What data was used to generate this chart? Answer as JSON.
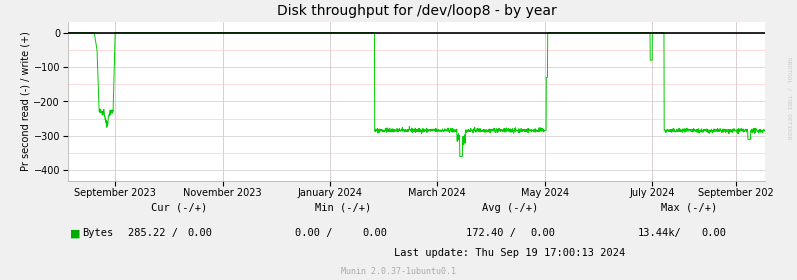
{
  "title": "Disk throughput for /dev/loop8 - by year",
  "ylabel": "Pr second read (-) / write (+)",
  "ylim": [
    -430,
    30
  ],
  "yticks": [
    0,
    -100,
    -200,
    -300,
    -400
  ],
  "bg_color": "#F0F0F0",
  "plot_bg_color": "#FFFFFF",
  "grid_color_major": "#CCCCCC",
  "grid_color_minor": "#FFCCCC",
  "line_color": "#00CC00",
  "right_label_color": "#CCCCCC",
  "right_label": "RRDTOOL / TOBI OETIKER",
  "legend_label": "Bytes",
  "legend_color": "#00AA00",
  "footer_cur_label": "Cur (-/+)",
  "footer_min_label": "Min (-/+)",
  "footer_avg_label": "Avg (-/+)",
  "footer_max_label": "Max (-/+)",
  "footer_cur_neg": "285.22",
  "footer_cur_pos": "0.00",
  "footer_min_neg": "0.00",
  "footer_min_pos": "0.00",
  "footer_avg_neg": "172.40",
  "footer_avg_pos": "0.00",
  "footer_max_neg": "13.44k/",
  "footer_max_pos": "0.00",
  "footer_lastupdate": "Last update: Thu Sep 19 17:00:13 2024",
  "footer_munin": "Munin 2.0.37-1ubuntu0.1",
  "xticklabels": [
    "September 2023",
    "November 2023",
    "January 2024",
    "March 2024",
    "May 2024",
    "July 2024",
    "September 202"
  ],
  "xtick_positions": [
    0.068,
    0.222,
    0.376,
    0.53,
    0.684,
    0.838,
    0.958
  ]
}
